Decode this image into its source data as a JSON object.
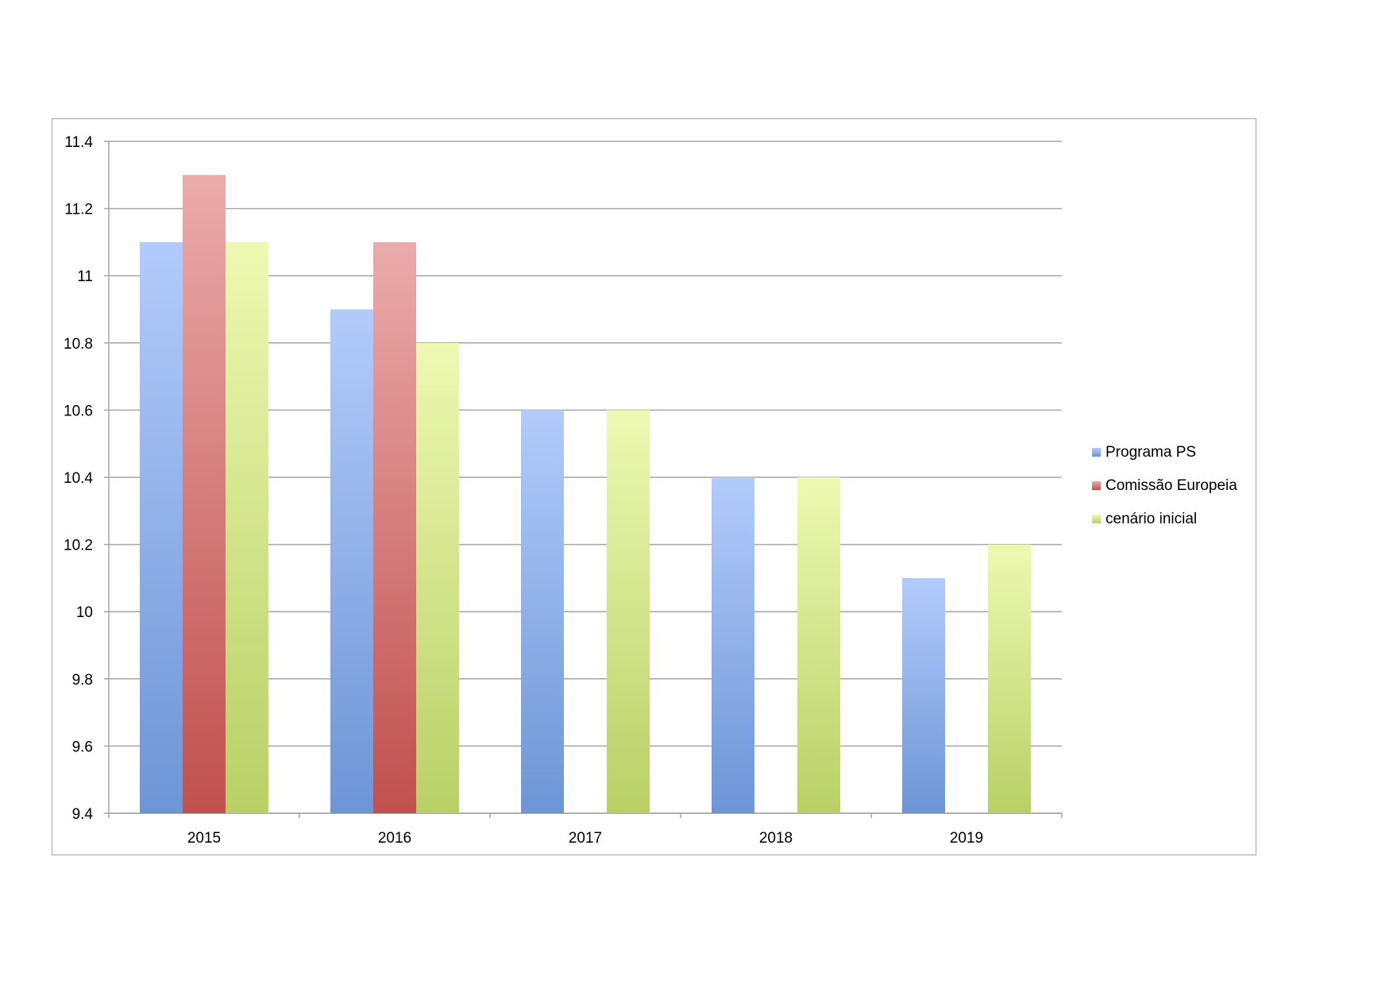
{
  "chart_data": {
    "type": "bar",
    "title": "",
    "xlabel": "",
    "ylabel": "",
    "categories": [
      "2015",
      "2016",
      "2017",
      "2018",
      "2019"
    ],
    "series": [
      {
        "name": "Programa PS",
        "values": [
          11.1,
          10.9,
          10.6,
          10.4,
          10.1
        ],
        "color": "#6d95d6",
        "color_light": "#b2cbfb"
      },
      {
        "name": "Comissão Europeia",
        "values": [
          11.3,
          11.1,
          null,
          null,
          null
        ],
        "color": "#c0504d",
        "color_light": "#eaabaa"
      },
      {
        "name": "cenário inicial",
        "values": [
          11.1,
          10.8,
          10.6,
          10.4,
          10.2
        ],
        "color": "#b9d066",
        "color_light": "#edf9b1"
      }
    ],
    "ylim": [
      9.4,
      11.4
    ],
    "yticks": [
      "9.4",
      "9.6",
      "9.8",
      "10",
      "10.2",
      "10.4",
      "10.6",
      "10.8",
      "11",
      "11.2",
      "11.4"
    ],
    "grid": true,
    "legend_position": "right"
  }
}
